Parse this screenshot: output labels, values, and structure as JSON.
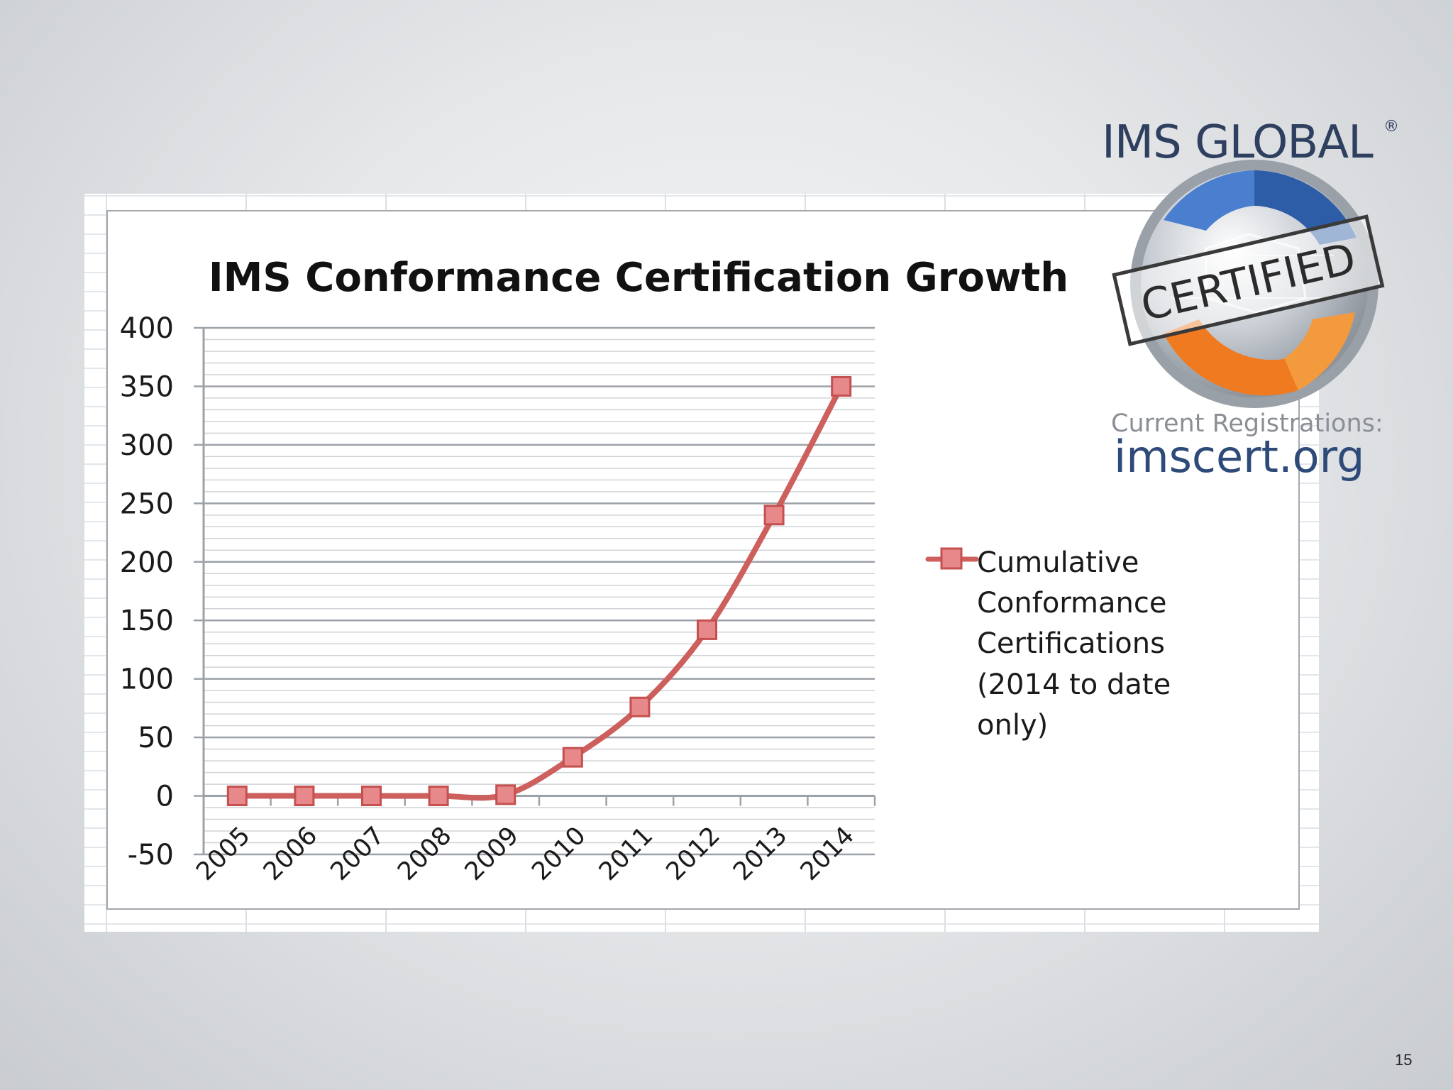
{
  "slide": {
    "page_number": "15"
  },
  "logo": {
    "brand_text": "IMS GLOBAL",
    "registered_mark": "®",
    "stamp_text": "CERTIFIED",
    "registrations_label": "Current Registrations:",
    "url": "imscert.org"
  },
  "colors": {
    "series_line": "#cd5f5d",
    "marker_fill": "#e7888a",
    "marker_stroke": "#c4504f",
    "grid_major": "#9da2a8",
    "grid_minor": "#cfd3d7",
    "logo_blue": "#2e3f5f",
    "logo_orange": "#f07a20"
  },
  "chart_data": {
    "type": "line",
    "title": "IMS Conformance Certification Growth",
    "categories": [
      "2005",
      "2006",
      "2007",
      "2008",
      "2009",
      "2010",
      "2011",
      "2012",
      "2013",
      "2014"
    ],
    "series": [
      {
        "name": "Cumulative Conformance Certifications (2014 to date only)",
        "values": [
          0,
          0,
          0,
          0,
          1,
          33,
          76,
          142,
          240,
          350
        ],
        "marker": "square",
        "smooth": true
      }
    ],
    "xlabel": "",
    "ylabel": "",
    "ylim": [
      -50,
      400
    ],
    "yticks": [
      400,
      350,
      300,
      250,
      200,
      150,
      100,
      50,
      0,
      -50
    ],
    "ytick_labels": [
      "400",
      "350",
      "300",
      "250",
      "200",
      "150",
      "100",
      "50",
      "0",
      "-50"
    ],
    "major_step": 50,
    "minor_step": 10,
    "grid": true,
    "legend_position": "right",
    "legend_lines": [
      "Cumulative",
      "Conformance",
      "Certifications",
      "(2014 to date",
      "only)"
    ]
  }
}
